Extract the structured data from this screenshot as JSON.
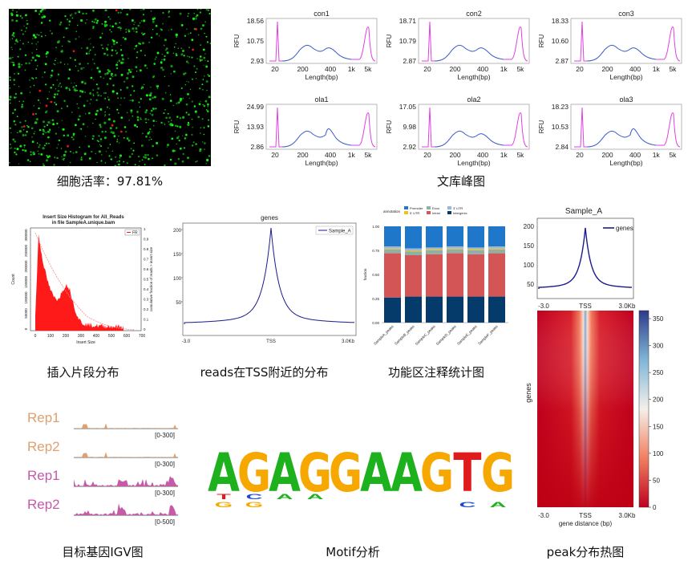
{
  "captions": {
    "cell_viability": "细胞活率：97.81%",
    "library_peaks": "文库峰图",
    "insert_size": "插入片段分布",
    "tss_reads": "reads在TSS附近的分布",
    "annotation": "功能区注释统计图",
    "igv": "目标基因IGV图",
    "motif": "Motif分析",
    "heatmap": "peak分布热图"
  },
  "library_panels": [
    {
      "name": "con1",
      "ymax": "18.56",
      "ymid": "10.75",
      "ymin": "2.93"
    },
    {
      "name": "con2",
      "ymax": "18.71",
      "ymid": "10.79",
      "ymin": "2.87"
    },
    {
      "name": "con3",
      "ymax": "18.33",
      "ymid": "10.60",
      "ymin": "2.87"
    },
    {
      "name": "ola1",
      "ymax": "24.99",
      "ymid": "13.93",
      "ymin": "2.86"
    },
    {
      "name": "ola2",
      "ymax": "17.05",
      "ymid": "9.98",
      "ymin": "2.92"
    },
    {
      "name": "ola3",
      "ymax": "18.23",
      "ymid": "10.53",
      "ymin": "2.84"
    }
  ],
  "library_axis": {
    "ylabel": "RFU",
    "xlabel": "Length(bp)",
    "ticks": [
      "20",
      "200",
      "400",
      "1k",
      "5k"
    ]
  },
  "insert_chart": {
    "title": "Insert Size Histogram for All_Reads",
    "subtitle": "in file SampleA.unique.bam",
    "xlabel": "Insert Size",
    "ylabel": "Count",
    "y2label": "cumulative fraction of reads > insert size",
    "legend": "FR",
    "xticks": [
      "0",
      "100",
      "200",
      "300",
      "400",
      "500",
      "600",
      "700"
    ],
    "yticks": [
      "0",
      "50000",
      "100000",
      "150000",
      "200000",
      "250000",
      "300000"
    ],
    "y2ticks": [
      "0",
      "0.1",
      "0.2",
      "0.3",
      "0.4",
      "0.5",
      "0.6",
      "0.7",
      "0.8",
      "0.9",
      "1"
    ]
  },
  "tss_chart": {
    "title": "genes",
    "legend": "Sample_A",
    "yticks": [
      "200",
      "150",
      "100",
      "50"
    ],
    "xticks": [
      "-3.0",
      "TSS",
      "3.0Kb"
    ]
  },
  "annotation_chart": {
    "legend_title": "annotation",
    "legend": [
      "Promoter",
      "5' UTR",
      "Exon",
      "Intron",
      "3' UTR",
      "Intergenic"
    ],
    "colors": [
      "#1f77c9",
      "#f0c020",
      "#8fb0a8",
      "#d45555",
      "#9ab8d8",
      "#053b6b"
    ],
    "ylabel": "fraction",
    "yticks": [
      "1.00",
      "0.75",
      "0.50",
      "0.25",
      "0.00"
    ],
    "samples": [
      "SampleA_peaks",
      "SampleB_peaks",
      "SampleC_peaks",
      "SampleD_peaks",
      "SampleE_peaks",
      "SampleF_peaks"
    ]
  },
  "heatmap_chart": {
    "title": "Sample_A",
    "legend": "genes",
    "profile_yticks": [
      "200",
      "150",
      "100",
      "50"
    ],
    "xticks": [
      "-3.0",
      "TSS",
      "3.0Kb"
    ],
    "ylabel": "genes",
    "xlabel": "gene distance (bp)",
    "colorbar_ticks": [
      "350",
      "300",
      "250",
      "200",
      "150",
      "100",
      "50",
      "0"
    ]
  },
  "igv": {
    "tracks": [
      {
        "label": "Rep1",
        "range": "[0-300]",
        "color": "#e0a070"
      },
      {
        "label": "Rep2",
        "range": "[0-300]",
        "color": "#e0a070"
      },
      {
        "label": "Rep1",
        "range": "[0-300]",
        "color": "#c45aa8"
      },
      {
        "label": "Rep2",
        "range": "[0-500]",
        "color": "#c45aa8"
      }
    ]
  },
  "motif": {
    "letters": [
      "A",
      "G",
      "A",
      "G",
      "G",
      "A",
      "A",
      "G",
      "T",
      "G"
    ],
    "colors": {
      "A": "#1db11d",
      "G": "#f7a800",
      "T": "#e01b1b",
      "C": "#1a48d6"
    }
  },
  "colors": {
    "rfu_peak": "#e040e0",
    "rfu_line": "#3a5cc8",
    "hist_red": "#ff1a1a",
    "tss_line": "#1a1a8c"
  }
}
